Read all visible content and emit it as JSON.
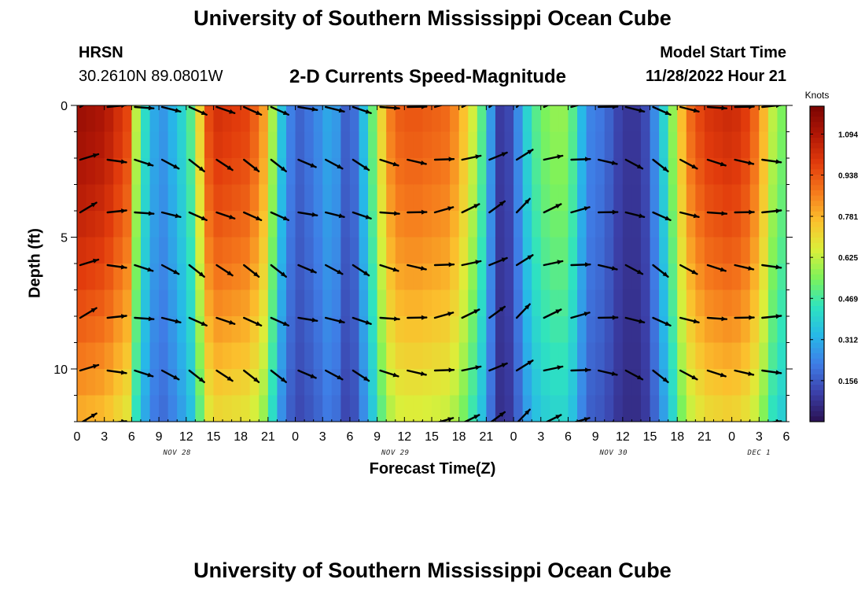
{
  "page": {
    "top_title": "University of Southern Mississippi Ocean Cube",
    "bottom_title": "University of Southern Mississippi Ocean Cube",
    "station": "HRSN",
    "coords": "30.2610N  89.0801W",
    "plot_title": "2-D Currents Speed-Magnitude",
    "model_start_label": "Model Start Time",
    "model_start_value": "11/28/2022 Hour 21"
  },
  "chart_data": {
    "type": "heatmap",
    "title": "2-D Currents Speed-Magnitude",
    "xlabel": "Forecast Time(Z)",
    "ylabel": "Depth (ft)",
    "x_hours_range": [
      0,
      78
    ],
    "ylim": [
      0,
      12
    ],
    "y_inverted": true,
    "x_tick_labels": [
      "0",
      "3",
      "6",
      "9",
      "12",
      "15",
      "18",
      "21",
      "0",
      "3",
      "6",
      "9",
      "12",
      "15",
      "18",
      "21",
      "0",
      "3",
      "6",
      "9",
      "12",
      "15",
      "18",
      "21",
      "0",
      "3",
      "6"
    ],
    "y_tick_values": [
      0,
      5,
      10
    ],
    "date_labels": [
      {
        "text": "NOV 28",
        "hour": 11
      },
      {
        "text": "NOV 29",
        "hour": 35
      },
      {
        "text": "NOV 30",
        "hour": 59
      },
      {
        "text": "DEC 1",
        "hour": 75
      }
    ],
    "colorbar": {
      "unit": "Knots",
      "ticks": [
        "1.094",
        "0.938",
        "0.781",
        "0.625",
        "0.469",
        "0.312",
        "0.156"
      ],
      "tick_values": [
        1.094,
        0.938,
        0.781,
        0.625,
        0.469,
        0.312,
        0.156
      ],
      "range": [
        0.0,
        1.2
      ],
      "colors": [
        "#2a1152",
        "#3b3fa8",
        "#3f7de6",
        "#27b8e8",
        "#2ee3c0",
        "#7df25a",
        "#dcef3a",
        "#fbc02d",
        "#f5791c",
        "#e23c0c",
        "#b11706",
        "#7a0402"
      ]
    },
    "speed_profile_hours": [
      0,
      3,
      5.5,
      6.5,
      7.5,
      9,
      11,
      13,
      14,
      15,
      19,
      21,
      22,
      24,
      26,
      28,
      30,
      32,
      34,
      35,
      37,
      41,
      43,
      45,
      46,
      47,
      48,
      50,
      52,
      54,
      55,
      56,
      58,
      60,
      62,
      63,
      65,
      67,
      69,
      72,
      74,
      76,
      77,
      78
    ],
    "speed_profile_knots": [
      1.12,
      1.08,
      0.95,
      0.6,
      0.4,
      0.22,
      0.33,
      0.52,
      0.88,
      1.0,
      0.95,
      0.75,
      0.4,
      0.14,
      0.2,
      0.3,
      0.1,
      0.4,
      0.8,
      0.9,
      0.92,
      0.88,
      0.7,
      0.4,
      0.1,
      0.06,
      0.15,
      0.45,
      0.55,
      0.55,
      0.4,
      0.22,
      0.18,
      0.07,
      0.07,
      0.15,
      0.45,
      0.85,
      0.98,
      1.02,
      0.95,
      0.7,
      0.5,
      0.55
    ],
    "vector_hours": [
      0,
      3,
      6,
      9,
      12,
      15,
      18,
      21,
      24,
      27,
      30,
      33,
      36,
      39,
      42,
      45,
      48,
      51,
      54,
      57,
      60,
      63,
      66,
      69,
      72,
      75
    ],
    "vector_depths": [
      0,
      2,
      4,
      6,
      8,
      10,
      12
    ],
    "vector_directions_deg": [
      -25,
      0,
      10,
      20,
      30,
      25,
      30,
      30,
      15,
      20,
      25,
      10,
      5,
      -10,
      -20,
      -30,
      -40,
      -20,
      -10,
      5,
      20,
      30,
      20,
      10,
      5,
      0
    ]
  }
}
